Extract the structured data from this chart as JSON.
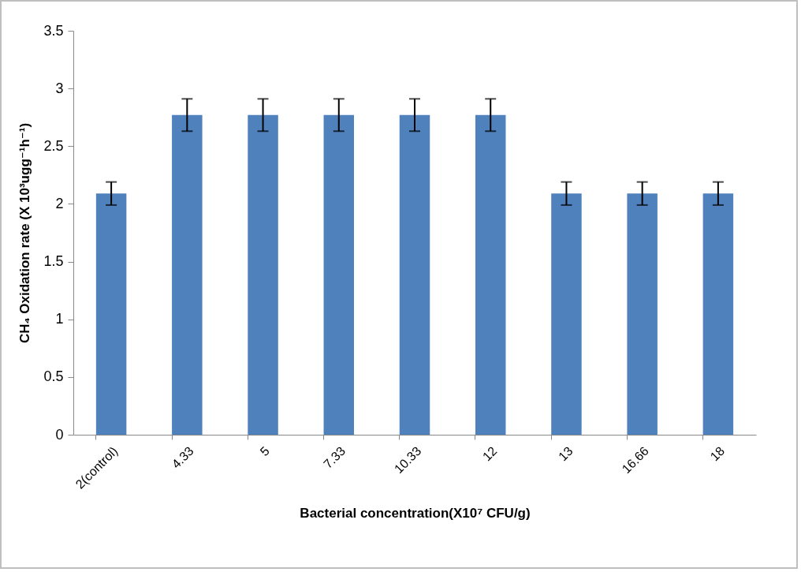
{
  "chart_data": {
    "type": "bar",
    "xlabel": "Bacterial concentration(X10⁷ CFU/g)",
    "ylabel": "CH₄ Oxidation rate (X 10³ugg⁻¹h⁻¹)",
    "categories": [
      "2(control)",
      "4.33",
      "5",
      "7.33",
      "10.33",
      "12",
      "13",
      "16.66",
      "18"
    ],
    "values": [
      2.09,
      2.77,
      2.77,
      2.77,
      2.77,
      2.77,
      2.09,
      2.09,
      2.09
    ],
    "errors": [
      0.1,
      0.14,
      0.14,
      0.14,
      0.14,
      0.14,
      0.1,
      0.1,
      0.1
    ],
    "color": "#4f81bd",
    "ylim": [
      0,
      3.5
    ],
    "yticks": [
      0,
      0.5,
      1,
      1.5,
      2,
      2.5,
      3,
      3.5
    ],
    "grid": false
  }
}
